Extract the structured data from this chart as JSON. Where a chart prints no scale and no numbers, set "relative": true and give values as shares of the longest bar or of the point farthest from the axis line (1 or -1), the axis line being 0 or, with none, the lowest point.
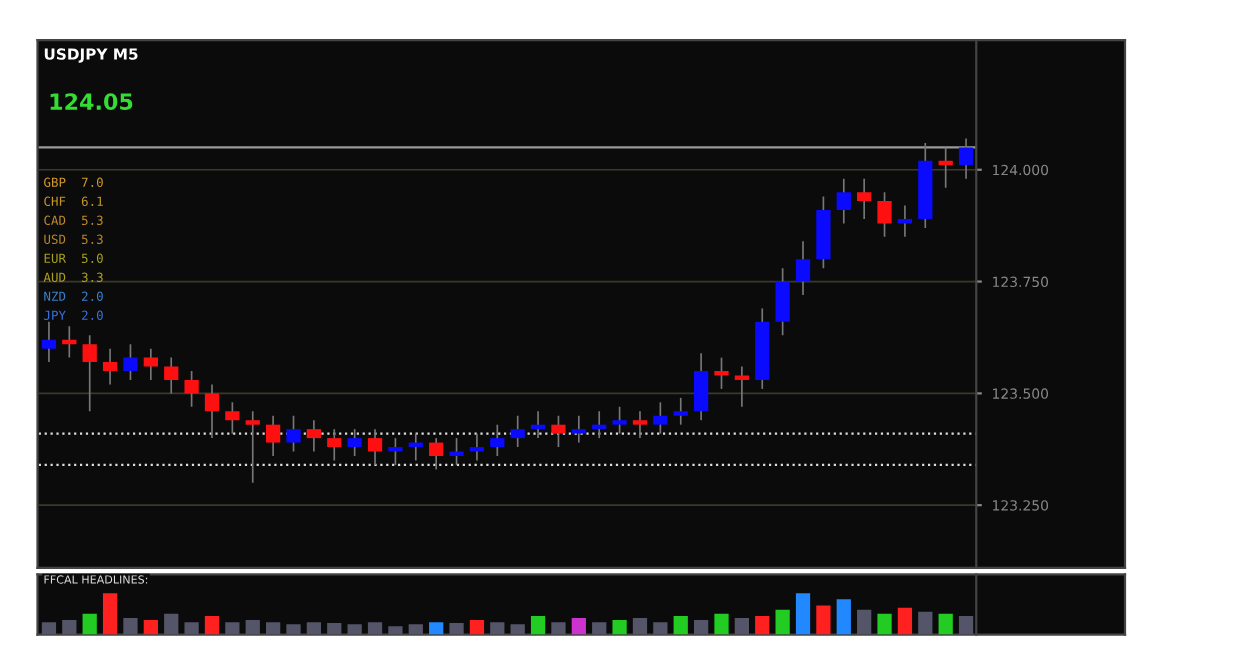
{
  "chart_data": [
    {
      "type": "candlestick",
      "title": "USDJPY M5",
      "annotations": [
        "124.05",
        "GBP  7.0",
        "CHF  6.1",
        "CAD  5.3",
        "USD  5.3",
        "EUR  5.0",
        "AUD  3.3",
        "NZD  2.0",
        "JPY  2.0"
      ],
      "categories": [
        null,
        null,
        null,
        null,
        null,
        null,
        null,
        null,
        null,
        null,
        null,
        null,
        null,
        null,
        null,
        null,
        null,
        null,
        null,
        null,
        null,
        null,
        null,
        null,
        null,
        null,
        null,
        null,
        null,
        null,
        null,
        null,
        null,
        null,
        null,
        null,
        null,
        null,
        null,
        null,
        null,
        null,
        null,
        null,
        null,
        null
      ],
      "ohlc": [
        [
          123.6,
          123.66,
          123.57,
          123.62
        ],
        [
          123.62,
          123.65,
          123.58,
          123.61
        ],
        [
          123.61,
          123.63,
          123.46,
          123.57
        ],
        [
          123.57,
          123.6,
          123.52,
          123.55
        ],
        [
          123.55,
          123.61,
          123.53,
          123.58
        ],
        [
          123.58,
          123.6,
          123.53,
          123.56
        ],
        [
          123.56,
          123.58,
          123.5,
          123.53
        ],
        [
          123.53,
          123.55,
          123.47,
          123.5
        ],
        [
          123.5,
          123.52,
          123.4,
          123.46
        ],
        [
          123.46,
          123.48,
          123.41,
          123.44
        ],
        [
          123.44,
          123.46,
          123.3,
          123.43
        ],
        [
          123.43,
          123.45,
          123.36,
          123.39
        ],
        [
          123.39,
          123.45,
          123.37,
          123.42
        ],
        [
          123.42,
          123.44,
          123.37,
          123.4
        ],
        [
          123.4,
          123.42,
          123.35,
          123.38
        ],
        [
          123.38,
          123.42,
          123.36,
          123.4
        ],
        [
          123.4,
          123.42,
          123.34,
          123.37
        ],
        [
          123.37,
          123.4,
          123.34,
          123.38
        ],
        [
          123.38,
          123.41,
          123.35,
          123.39
        ],
        [
          123.39,
          123.4,
          123.33,
          123.36
        ],
        [
          123.36,
          123.4,
          123.34,
          123.37
        ],
        [
          123.37,
          123.41,
          123.35,
          123.38
        ],
        [
          123.38,
          123.43,
          123.36,
          123.4
        ],
        [
          123.4,
          123.45,
          123.38,
          123.42
        ],
        [
          123.42,
          123.46,
          123.4,
          123.43
        ],
        [
          123.43,
          123.45,
          123.38,
          123.41
        ],
        [
          123.41,
          123.45,
          123.39,
          123.42
        ],
        [
          123.42,
          123.46,
          123.4,
          123.43
        ],
        [
          123.43,
          123.47,
          123.41,
          123.44
        ],
        [
          123.44,
          123.46,
          123.4,
          123.43
        ],
        [
          123.43,
          123.48,
          123.41,
          123.45
        ],
        [
          123.45,
          123.49,
          123.43,
          123.46
        ],
        [
          123.46,
          123.59,
          123.44,
          123.55
        ],
        [
          123.55,
          123.58,
          123.51,
          123.54
        ],
        [
          123.54,
          123.56,
          123.47,
          123.53
        ],
        [
          123.53,
          123.69,
          123.51,
          123.66
        ],
        [
          123.66,
          123.78,
          123.63,
          123.75
        ],
        [
          123.75,
          123.84,
          123.72,
          123.8
        ],
        [
          123.8,
          123.94,
          123.78,
          123.91
        ],
        [
          123.91,
          123.98,
          123.88,
          123.95
        ],
        [
          123.95,
          123.98,
          123.89,
          123.93
        ],
        [
          123.93,
          123.95,
          123.85,
          123.88
        ],
        [
          123.88,
          123.92,
          123.85,
          123.89
        ],
        [
          123.89,
          124.06,
          123.87,
          124.02
        ],
        [
          124.02,
          124.05,
          123.96,
          124.01
        ],
        [
          124.01,
          124.07,
          123.98,
          124.05
        ]
      ],
      "colors": [
        "#0a0aff",
        "#ff1010",
        "#ff1010",
        "#ff1010",
        "#0a0aff",
        "#ff1010",
        "#ff1010",
        "#ff1010",
        "#ff1010",
        "#ff1010",
        "#ff1010",
        "#ff1010",
        "#0a0aff",
        "#ff1010",
        "#ff1010",
        "#0a0aff",
        "#ff1010",
        "#0a0aff",
        "#0a0aff",
        "#ff1010",
        "#0a0aff",
        "#0a0aff",
        "#0a0aff",
        "#0a0aff",
        "#0a0aff",
        "#ff1010",
        "#0a0aff",
        "#0a0aff",
        "#0a0aff",
        "#ff1010",
        "#0a0aff",
        "#0a0aff",
        "#0a0aff",
        "#ff1010",
        "#ff1010",
        "#0a0aff",
        "#0a0aff",
        "#0a0aff",
        "#0a0aff",
        "#0a0aff",
        "#ff1010",
        "#ff1010",
        "#0a0aff",
        "#0a0aff",
        "#ff1010",
        "#0a0aff"
      ],
      "ylim": [
        123.11,
        124.29
      ],
      "yticks": [
        {
          "value": 123.25,
          "label": "123.250"
        },
        {
          "value": 123.5,
          "label": "123.500"
        },
        {
          "value": 123.75,
          "label": "123.750"
        },
        {
          "value": 124.0,
          "label": "124.000"
        }
      ],
      "ref_lines": [
        {
          "axis": "y",
          "value": 124.05,
          "color": "#9a9a9a",
          "line_style": "solid"
        },
        {
          "axis": "y",
          "value": 123.41,
          "color": "#dddddd",
          "line_style": "dotted"
        },
        {
          "axis": "y",
          "value": 123.34,
          "color": "#dddddd",
          "line_style": "dotted"
        }
      ],
      "grid": "y",
      "tick_labels": "y"
    },
    {
      "type": "bar",
      "relative": true,
      "title": "FFCAL HEADLINES:",
      "categories": [
        null,
        null,
        null,
        null,
        null,
        null,
        null,
        null,
        null,
        null,
        null,
        null,
        null,
        null,
        null,
        null,
        null,
        null,
        null,
        null,
        null,
        null,
        null,
        null,
        null,
        null,
        null,
        null,
        null,
        null,
        null,
        null,
        null,
        null,
        null,
        null,
        null,
        null,
        null,
        null,
        null,
        null,
        null,
        null,
        null,
        null
      ],
      "values": [
        0.3,
        0.35,
        0.5,
        1.0,
        0.4,
        0.35,
        0.5,
        0.3,
        0.45,
        0.3,
        0.35,
        0.3,
        0.25,
        0.3,
        0.28,
        0.25,
        0.3,
        0.2,
        0.25,
        0.3,
        0.28,
        0.35,
        0.3,
        0.25,
        0.45,
        0.3,
        0.4,
        0.3,
        0.35,
        0.4,
        0.3,
        0.45,
        0.35,
        0.5,
        0.4,
        0.45,
        0.6,
        1.0,
        0.7,
        0.85,
        0.6,
        0.5,
        0.65,
        0.55,
        0.5,
        0.45
      ],
      "colors": [
        "#55556a",
        "#55556a",
        "#22cc22",
        "#ff2020",
        "#55556a",
        "#ff2020",
        "#55556a",
        "#55556a",
        "#ff2020",
        "#55556a",
        "#55556a",
        "#55556a",
        "#55556a",
        "#55556a",
        "#55556a",
        "#55556a",
        "#55556a",
        "#55556a",
        "#55556a",
        "#2288ff",
        "#55556a",
        "#ff2020",
        "#55556a",
        "#55556a",
        "#22cc22",
        "#55556a",
        "#cc33cc",
        "#55556a",
        "#22cc22",
        "#55556a",
        "#55556a",
        "#22cc22",
        "#55556a",
        "#22cc22",
        "#55556a",
        "#ff2020",
        "#22cc22",
        "#2288ff",
        "#ff2020",
        "#2288ff",
        "#55556a",
        "#22cc22",
        "#ff2020",
        "#55556a",
        "#22cc22",
        "#55556a"
      ],
      "tick_labels": false
    }
  ]
}
